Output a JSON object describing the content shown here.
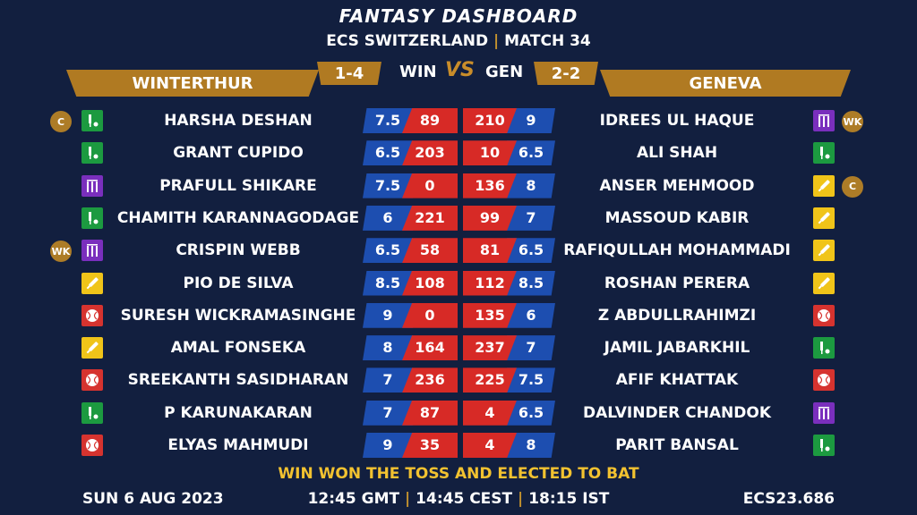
{
  "title": "FANTASY DASHBOARD",
  "subtitle": {
    "left": "ECS SWITZERLAND",
    "separator": "|",
    "right": "MATCH 34"
  },
  "teams": {
    "left": {
      "name": "WINTERTHUR",
      "abbr": "WIN",
      "record": "1-4"
    },
    "right": {
      "name": "GENEVA",
      "abbr": "GEN",
      "record": "2-2"
    },
    "vs": "VS"
  },
  "colors": {
    "background": "#121f3f",
    "gold": "#b07a22",
    "credit_blue": "#1d4eb0",
    "points_red": "#d72a26",
    "toss_yellow": "#f2c230"
  },
  "players": [
    {
      "left": {
        "name": "HARSHA DESHAN",
        "credit": "7.5",
        "points": "89",
        "role": "allrounder",
        "badge": "C"
      },
      "right": {
        "name": "IDREES UL HAQUE",
        "credit": "9",
        "points": "210",
        "role": "wicketkeeper",
        "badge": "WK"
      }
    },
    {
      "left": {
        "name": "GRANT CUPIDO",
        "credit": "6.5",
        "points": "203",
        "role": "allrounder",
        "badge": ""
      },
      "right": {
        "name": "ALI SHAH",
        "credit": "6.5",
        "points": "10",
        "role": "allrounder",
        "badge": ""
      }
    },
    {
      "left": {
        "name": "PRAFULL SHIKARE",
        "credit": "7.5",
        "points": "0",
        "role": "wicketkeeper",
        "badge": ""
      },
      "right": {
        "name": "ANSER MEHMOOD",
        "credit": "8",
        "points": "136",
        "role": "batter",
        "badge": "C"
      }
    },
    {
      "left": {
        "name": "CHAMITH KARANNAGODAGE",
        "credit": "6",
        "points": "221",
        "role": "allrounder",
        "badge": ""
      },
      "right": {
        "name": "MASSOUD KABIR",
        "credit": "7",
        "points": "99",
        "role": "batter",
        "badge": ""
      }
    },
    {
      "left": {
        "name": "CRISPIN WEBB",
        "credit": "6.5",
        "points": "58",
        "role": "wicketkeeper",
        "badge": "WK"
      },
      "right": {
        "name": "RAFIQULLAH MOHAMMADI",
        "credit": "6.5",
        "points": "81",
        "role": "batter",
        "badge": ""
      }
    },
    {
      "left": {
        "name": "PIO DE SILVA",
        "credit": "8.5",
        "points": "108",
        "role": "batter",
        "badge": ""
      },
      "right": {
        "name": "ROSHAN PERERA",
        "credit": "8.5",
        "points": "112",
        "role": "batter",
        "badge": ""
      }
    },
    {
      "left": {
        "name": "SURESH WICKRAMASINGHE",
        "credit": "9",
        "points": "0",
        "role": "bowler",
        "badge": ""
      },
      "right": {
        "name": "Z ABDULLRAHIMZI",
        "credit": "6",
        "points": "135",
        "role": "bowler",
        "badge": ""
      }
    },
    {
      "left": {
        "name": "AMAL FONSEKA",
        "credit": "8",
        "points": "164",
        "role": "batter",
        "badge": ""
      },
      "right": {
        "name": "JAMIL JABARKHIL",
        "credit": "7",
        "points": "237",
        "role": "allrounder",
        "badge": ""
      }
    },
    {
      "left": {
        "name": "SREEKANTH SASIDHARAN",
        "credit": "7",
        "points": "236",
        "role": "bowler",
        "badge": ""
      },
      "right": {
        "name": "AFIF KHATTAK",
        "credit": "7.5",
        "points": "225",
        "role": "bowler",
        "badge": ""
      }
    },
    {
      "left": {
        "name": "P KARUNAKARAN",
        "credit": "7",
        "points": "87",
        "role": "allrounder",
        "badge": ""
      },
      "right": {
        "name": "DALVINDER CHANDOK",
        "credit": "6.5",
        "points": "4",
        "role": "wicketkeeper",
        "badge": ""
      }
    },
    {
      "left": {
        "name": "ELYAS MAHMUDI",
        "credit": "9",
        "points": "35",
        "role": "bowler",
        "badge": ""
      },
      "right": {
        "name": "PARIT BANSAL",
        "credit": "8",
        "points": "4",
        "role": "allrounder",
        "badge": ""
      }
    }
  ],
  "toss": "WIN WON THE TOSS AND ELECTED TO BAT",
  "footer": {
    "date": "SUN 6 AUG 2023",
    "times": [
      "12:45 GMT",
      "14:45 CEST",
      "18:15 IST"
    ],
    "separator": "|",
    "code": "ECS23.686"
  }
}
